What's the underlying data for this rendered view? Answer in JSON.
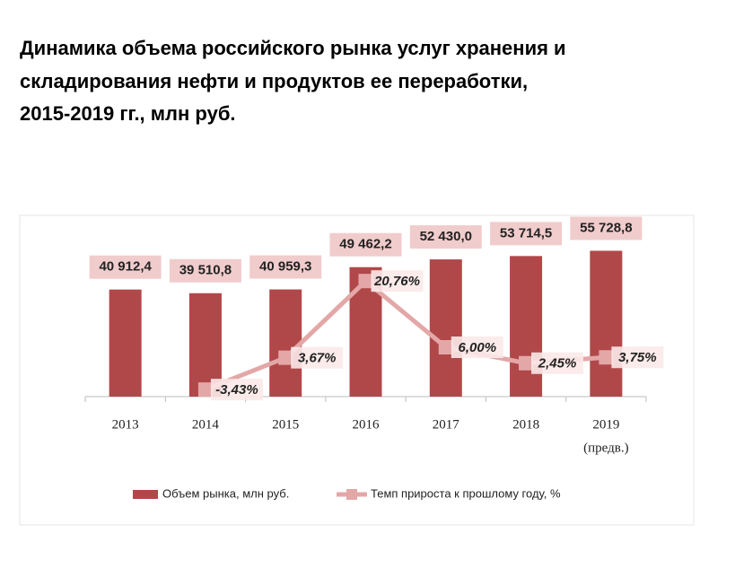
{
  "chart_data": {
    "type": "bar",
    "title": [
      "Динамика объема российского рынка услуг хранения и",
      "складирования нефти и продуктов ее переработки,",
      "2015-2019 гг., млн руб."
    ],
    "categories": [
      "2013",
      "2014",
      "2015",
      "2016",
      "2017",
      "2018",
      "2019"
    ],
    "category_note": "(предв.)",
    "ylim": [
      0,
      60000
    ],
    "y2lim": [
      -5,
      30
    ],
    "legend": "bottom",
    "series": [
      {
        "name": "Объем рынка, млн руб.",
        "type": "bar",
        "color": "#b0484a",
        "values": [
          40912.4,
          39510.8,
          40959.3,
          49462.2,
          52430.0,
          53714.5,
          55728.8
        ],
        "value_labels": [
          "40 912,4",
          "39 510,8",
          "40 959,3",
          "49 462,2",
          "52 430,0",
          "53 714,5",
          "55 728,8"
        ]
      },
      {
        "name": "Темп прироста к прошлому году, %",
        "type": "line",
        "axis": "y2",
        "color": "#e3a7a7",
        "values": [
          null,
          -3.43,
          3.67,
          20.76,
          6.0,
          2.45,
          3.75
        ],
        "value_labels": [
          null,
          "-3,43%",
          "3,67%",
          "20,76%",
          "6,00%",
          "2,45%",
          "3,75%"
        ]
      }
    ]
  }
}
